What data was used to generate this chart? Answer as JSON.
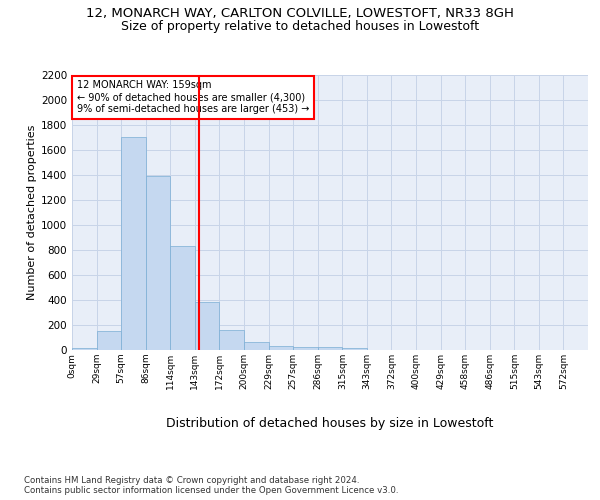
{
  "title1": "12, MONARCH WAY, CARLTON COLVILLE, LOWESTOFT, NR33 8GH",
  "title2": "Size of property relative to detached houses in Lowestoft",
  "xlabel": "Distribution of detached houses by size in Lowestoft",
  "ylabel": "Number of detached properties",
  "bar_values": [
    15,
    155,
    1700,
    1390,
    835,
    385,
    160,
    65,
    35,
    28,
    28,
    15,
    0,
    0,
    0,
    0,
    0,
    0,
    0,
    0,
    0
  ],
  "x_labels": [
    "0sqm",
    "29sqm",
    "57sqm",
    "86sqm",
    "114sqm",
    "143sqm",
    "172sqm",
    "200sqm",
    "229sqm",
    "257sqm",
    "286sqm",
    "315sqm",
    "343sqm",
    "372sqm",
    "400sqm",
    "429sqm",
    "458sqm",
    "486sqm",
    "515sqm",
    "543sqm",
    "572sqm"
  ],
  "bar_color": "#c5d8f0",
  "bar_edge_color": "#7aadd4",
  "grid_color": "#c8d4e8",
  "background_color": "#e8eef8",
  "vline_x": 5.15,
  "vline_color": "red",
  "annotation_text": "12 MONARCH WAY: 159sqm\n← 90% of detached houses are smaller (4,300)\n9% of semi-detached houses are larger (453) →",
  "ylim": [
    0,
    2200
  ],
  "yticks": [
    0,
    200,
    400,
    600,
    800,
    1000,
    1200,
    1400,
    1600,
    1800,
    2000,
    2200
  ],
  "footer": "Contains HM Land Registry data © Crown copyright and database right 2024.\nContains public sector information licensed under the Open Government Licence v3.0.",
  "title1_fontsize": 9.5,
  "title2_fontsize": 9,
  "xlabel_fontsize": 9,
  "ylabel_fontsize": 8
}
